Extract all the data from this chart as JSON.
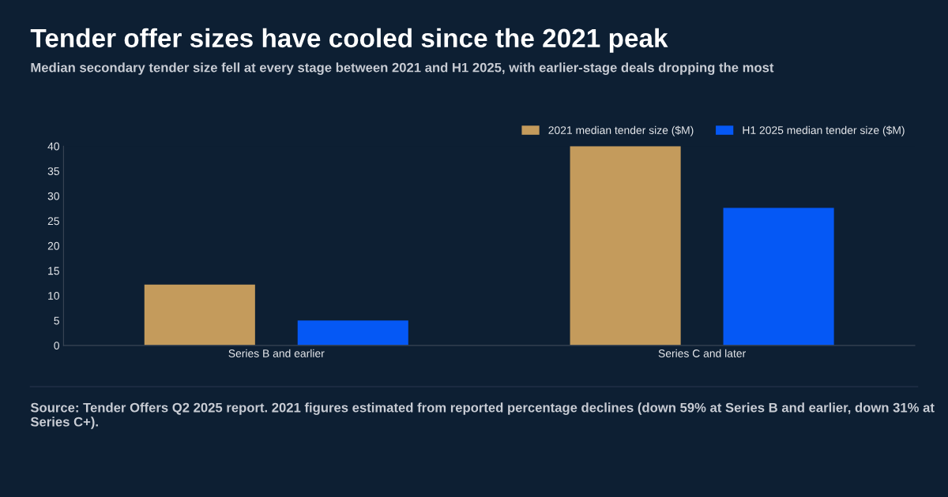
{
  "chart_data": {
    "type": "bar",
    "title": "Tender offer sizes have cooled since the 2021 peak",
    "subtitle": "Median secondary tender size fell at every stage between 2021 and H1 2025, with earlier-stage deals dropping the most",
    "categories": [
      "Series B and earlier",
      "Series C and later"
    ],
    "series": [
      {
        "name": "2021 median tender size ($M)",
        "color": "#c49b5c",
        "values": [
          12.2,
          40
        ]
      },
      {
        "name": "H1 2025 median tender size ($M)",
        "color": "#0558f5",
        "values": [
          5.0,
          27.6
        ]
      }
    ],
    "ylim": [
      0,
      40
    ],
    "yticks": [
      0,
      5,
      10,
      15,
      20,
      25,
      30,
      35,
      40
    ],
    "legend": "top right",
    "annotations": [
      "Source: Tender Offers Q2 2025 report. 2021 figures estimated from reported percentage declines (down 59% at Series B and earlier, down 31% at Series C+)."
    ]
  }
}
